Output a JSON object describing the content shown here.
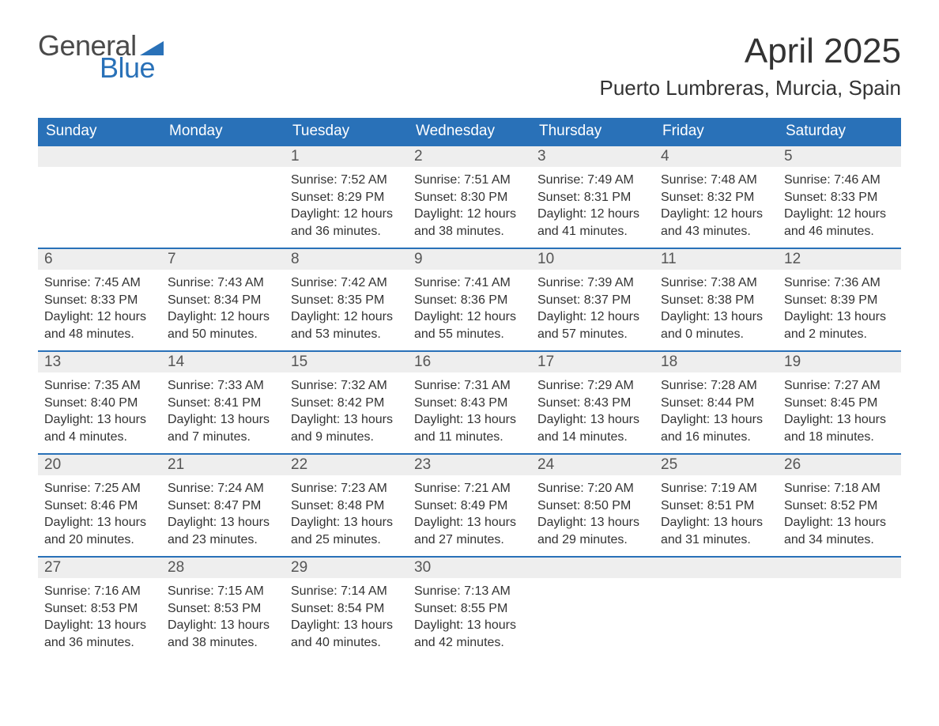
{
  "logo": {
    "text1": "General",
    "text2": "Blue",
    "tri_color": "#2971b8"
  },
  "header": {
    "month_title": "April 2025",
    "location": "Puerto Lumbreras, Murcia, Spain"
  },
  "colors": {
    "header_bg": "#2971b8",
    "header_text": "#ffffff",
    "daynum_bg": "#eeeeee",
    "row_border": "#2971b8",
    "body_text": "#333333"
  },
  "day_names": [
    "Sunday",
    "Monday",
    "Tuesday",
    "Wednesday",
    "Thursday",
    "Friday",
    "Saturday"
  ],
  "weeks": [
    [
      null,
      null,
      {
        "n": "1",
        "sunrise": "Sunrise: 7:52 AM",
        "sunset": "Sunset: 8:29 PM",
        "day1": "Daylight: 12 hours",
        "day2": "and 36 minutes."
      },
      {
        "n": "2",
        "sunrise": "Sunrise: 7:51 AM",
        "sunset": "Sunset: 8:30 PM",
        "day1": "Daylight: 12 hours",
        "day2": "and 38 minutes."
      },
      {
        "n": "3",
        "sunrise": "Sunrise: 7:49 AM",
        "sunset": "Sunset: 8:31 PM",
        "day1": "Daylight: 12 hours",
        "day2": "and 41 minutes."
      },
      {
        "n": "4",
        "sunrise": "Sunrise: 7:48 AM",
        "sunset": "Sunset: 8:32 PM",
        "day1": "Daylight: 12 hours",
        "day2": "and 43 minutes."
      },
      {
        "n": "5",
        "sunrise": "Sunrise: 7:46 AM",
        "sunset": "Sunset: 8:33 PM",
        "day1": "Daylight: 12 hours",
        "day2": "and 46 minutes."
      }
    ],
    [
      {
        "n": "6",
        "sunrise": "Sunrise: 7:45 AM",
        "sunset": "Sunset: 8:33 PM",
        "day1": "Daylight: 12 hours",
        "day2": "and 48 minutes."
      },
      {
        "n": "7",
        "sunrise": "Sunrise: 7:43 AM",
        "sunset": "Sunset: 8:34 PM",
        "day1": "Daylight: 12 hours",
        "day2": "and 50 minutes."
      },
      {
        "n": "8",
        "sunrise": "Sunrise: 7:42 AM",
        "sunset": "Sunset: 8:35 PM",
        "day1": "Daylight: 12 hours",
        "day2": "and 53 minutes."
      },
      {
        "n": "9",
        "sunrise": "Sunrise: 7:41 AM",
        "sunset": "Sunset: 8:36 PM",
        "day1": "Daylight: 12 hours",
        "day2": "and 55 minutes."
      },
      {
        "n": "10",
        "sunrise": "Sunrise: 7:39 AM",
        "sunset": "Sunset: 8:37 PM",
        "day1": "Daylight: 12 hours",
        "day2": "and 57 minutes."
      },
      {
        "n": "11",
        "sunrise": "Sunrise: 7:38 AM",
        "sunset": "Sunset: 8:38 PM",
        "day1": "Daylight: 13 hours",
        "day2": "and 0 minutes."
      },
      {
        "n": "12",
        "sunrise": "Sunrise: 7:36 AM",
        "sunset": "Sunset: 8:39 PM",
        "day1": "Daylight: 13 hours",
        "day2": "and 2 minutes."
      }
    ],
    [
      {
        "n": "13",
        "sunrise": "Sunrise: 7:35 AM",
        "sunset": "Sunset: 8:40 PM",
        "day1": "Daylight: 13 hours",
        "day2": "and 4 minutes."
      },
      {
        "n": "14",
        "sunrise": "Sunrise: 7:33 AM",
        "sunset": "Sunset: 8:41 PM",
        "day1": "Daylight: 13 hours",
        "day2": "and 7 minutes."
      },
      {
        "n": "15",
        "sunrise": "Sunrise: 7:32 AM",
        "sunset": "Sunset: 8:42 PM",
        "day1": "Daylight: 13 hours",
        "day2": "and 9 minutes."
      },
      {
        "n": "16",
        "sunrise": "Sunrise: 7:31 AM",
        "sunset": "Sunset: 8:43 PM",
        "day1": "Daylight: 13 hours",
        "day2": "and 11 minutes."
      },
      {
        "n": "17",
        "sunrise": "Sunrise: 7:29 AM",
        "sunset": "Sunset: 8:43 PM",
        "day1": "Daylight: 13 hours",
        "day2": "and 14 minutes."
      },
      {
        "n": "18",
        "sunrise": "Sunrise: 7:28 AM",
        "sunset": "Sunset: 8:44 PM",
        "day1": "Daylight: 13 hours",
        "day2": "and 16 minutes."
      },
      {
        "n": "19",
        "sunrise": "Sunrise: 7:27 AM",
        "sunset": "Sunset: 8:45 PM",
        "day1": "Daylight: 13 hours",
        "day2": "and 18 minutes."
      }
    ],
    [
      {
        "n": "20",
        "sunrise": "Sunrise: 7:25 AM",
        "sunset": "Sunset: 8:46 PM",
        "day1": "Daylight: 13 hours",
        "day2": "and 20 minutes."
      },
      {
        "n": "21",
        "sunrise": "Sunrise: 7:24 AM",
        "sunset": "Sunset: 8:47 PM",
        "day1": "Daylight: 13 hours",
        "day2": "and 23 minutes."
      },
      {
        "n": "22",
        "sunrise": "Sunrise: 7:23 AM",
        "sunset": "Sunset: 8:48 PM",
        "day1": "Daylight: 13 hours",
        "day2": "and 25 minutes."
      },
      {
        "n": "23",
        "sunrise": "Sunrise: 7:21 AM",
        "sunset": "Sunset: 8:49 PM",
        "day1": "Daylight: 13 hours",
        "day2": "and 27 minutes."
      },
      {
        "n": "24",
        "sunrise": "Sunrise: 7:20 AM",
        "sunset": "Sunset: 8:50 PM",
        "day1": "Daylight: 13 hours",
        "day2": "and 29 minutes."
      },
      {
        "n": "25",
        "sunrise": "Sunrise: 7:19 AM",
        "sunset": "Sunset: 8:51 PM",
        "day1": "Daylight: 13 hours",
        "day2": "and 31 minutes."
      },
      {
        "n": "26",
        "sunrise": "Sunrise: 7:18 AM",
        "sunset": "Sunset: 8:52 PM",
        "day1": "Daylight: 13 hours",
        "day2": "and 34 minutes."
      }
    ],
    [
      {
        "n": "27",
        "sunrise": "Sunrise: 7:16 AM",
        "sunset": "Sunset: 8:53 PM",
        "day1": "Daylight: 13 hours",
        "day2": "and 36 minutes."
      },
      {
        "n": "28",
        "sunrise": "Sunrise: 7:15 AM",
        "sunset": "Sunset: 8:53 PM",
        "day1": "Daylight: 13 hours",
        "day2": "and 38 minutes."
      },
      {
        "n": "29",
        "sunrise": "Sunrise: 7:14 AM",
        "sunset": "Sunset: 8:54 PM",
        "day1": "Daylight: 13 hours",
        "day2": "and 40 minutes."
      },
      {
        "n": "30",
        "sunrise": "Sunrise: 7:13 AM",
        "sunset": "Sunset: 8:55 PM",
        "day1": "Daylight: 13 hours",
        "day2": "and 42 minutes."
      },
      null,
      null,
      null
    ]
  ]
}
